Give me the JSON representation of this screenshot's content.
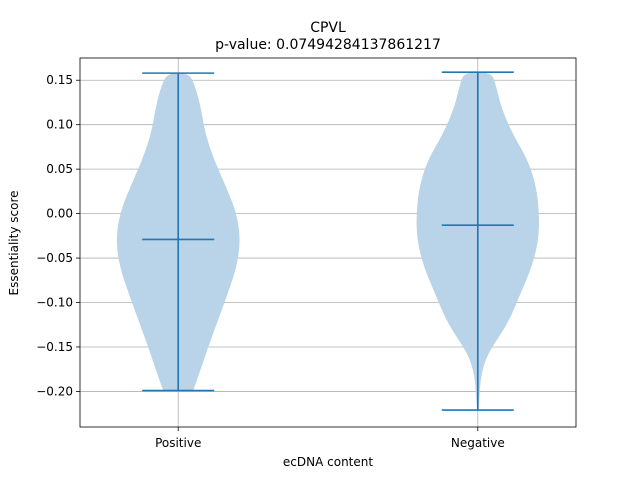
{
  "chart_data": {
    "type": "violin",
    "title": "CPVL",
    "subtitle": "p-value: 0.07494284137861217",
    "xlabel": "ecDNA content",
    "ylabel": "Essentiality score",
    "categories": [
      "Positive",
      "Negative"
    ],
    "ylim": [
      -0.24,
      0.175
    ],
    "yticks": [
      {
        "value": 0.15,
        "label": "0.15"
      },
      {
        "value": 0.1,
        "label": "0.10"
      },
      {
        "value": 0.05,
        "label": "0.05"
      },
      {
        "value": 0.0,
        "label": "0.00"
      },
      {
        "value": -0.05,
        "label": "−0.05"
      },
      {
        "value": -0.1,
        "label": "−0.10"
      },
      {
        "value": -0.15,
        "label": "−0.15"
      },
      {
        "value": -0.2,
        "label": "−0.20"
      }
    ],
    "grid": true,
    "colors": {
      "fill": "#b9d3e8",
      "line": "#1f77b4",
      "grid": "#b0b0b0"
    },
    "violins": [
      {
        "category": "Positive",
        "min": -0.199,
        "median": -0.029,
        "max": 0.158,
        "density": [
          {
            "y": -0.199,
            "w": 0.2
          },
          {
            "y": -0.18,
            "w": 0.28
          },
          {
            "y": -0.15,
            "w": 0.4
          },
          {
            "y": -0.12,
            "w": 0.53
          },
          {
            "y": -0.09,
            "w": 0.66
          },
          {
            "y": -0.06,
            "w": 0.78
          },
          {
            "y": -0.03,
            "w": 0.83
          },
          {
            "y": 0.0,
            "w": 0.78
          },
          {
            "y": 0.03,
            "w": 0.64
          },
          {
            "y": 0.06,
            "w": 0.48
          },
          {
            "y": 0.09,
            "w": 0.36
          },
          {
            "y": 0.12,
            "w": 0.3
          },
          {
            "y": 0.145,
            "w": 0.22
          },
          {
            "y": 0.158,
            "w": 0.14
          }
        ]
      },
      {
        "category": "Negative",
        "min": -0.221,
        "median": -0.013,
        "max": 0.159,
        "density": [
          {
            "y": -0.221,
            "w": 0.01
          },
          {
            "y": -0.21,
            "w": 0.02
          },
          {
            "y": -0.195,
            "w": 0.03
          },
          {
            "y": -0.18,
            "w": 0.05
          },
          {
            "y": -0.16,
            "w": 0.12
          },
          {
            "y": -0.14,
            "w": 0.27
          },
          {
            "y": -0.12,
            "w": 0.42
          },
          {
            "y": -0.09,
            "w": 0.57
          },
          {
            "y": -0.06,
            "w": 0.72
          },
          {
            "y": -0.03,
            "w": 0.81
          },
          {
            "y": 0.0,
            "w": 0.82
          },
          {
            "y": 0.03,
            "w": 0.78
          },
          {
            "y": 0.06,
            "w": 0.67
          },
          {
            "y": 0.09,
            "w": 0.46
          },
          {
            "y": 0.12,
            "w": 0.31
          },
          {
            "y": 0.145,
            "w": 0.24
          },
          {
            "y": 0.159,
            "w": 0.18
          }
        ]
      }
    ]
  }
}
